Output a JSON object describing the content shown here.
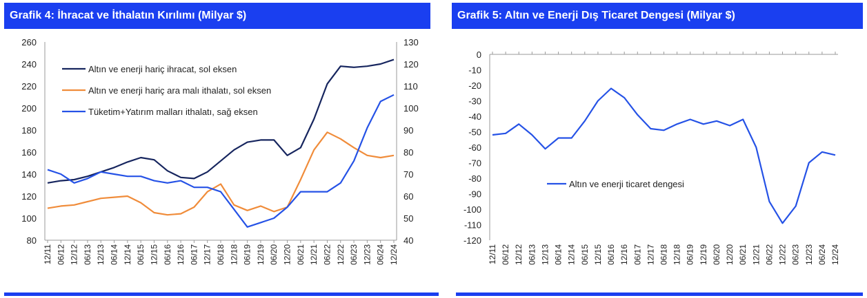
{
  "charts": [
    {
      "title": "Grafik 4: İhracat ve İthalatın Kırılımı (Milyar $)"
    },
    {
      "title": "Grafik 5: Altın ve Enerji Dış Ticaret Dengesi (Milyar $)"
    }
  ],
  "chart_data": [
    {
      "type": "line",
      "title": "Grafik 4: İhracat ve İthalatın Kırılımı (Milyar $)",
      "x_labels": [
        "12/11",
        "06/12",
        "12/12",
        "06/13",
        "12/13",
        "06/14",
        "12/14",
        "06/15",
        "12/15",
        "06/16",
        "12/16",
        "06/17",
        "12/17",
        "06/18",
        "12/18",
        "06/19",
        "12/19",
        "06/20",
        "12/20",
        "06/21",
        "12/21",
        "06/22",
        "12/22",
        "06/23",
        "12/23",
        "06/24",
        "12/24"
      ],
      "ylim_left": [
        80,
        260
      ],
      "yticks_left": [
        80,
        100,
        120,
        140,
        160,
        180,
        200,
        220,
        240,
        260
      ],
      "ylim_right": [
        40,
        130
      ],
      "yticks_right": [
        40,
        50,
        60,
        70,
        80,
        90,
        100,
        110,
        120,
        130
      ],
      "grid": false,
      "legend_position": "top-left",
      "series": [
        {
          "name": "Altın ve enerji hariç ihracat, sol eksen",
          "axis": "left",
          "color": "#16255e",
          "values": [
            132,
            134,
            135,
            138,
            142,
            146,
            151,
            155,
            153,
            143,
            137,
            136,
            142,
            152,
            162,
            169,
            171,
            171,
            157,
            164,
            190,
            222,
            238,
            237,
            238,
            240,
            244
          ]
        },
        {
          "name": "Altın ve enerji hariç ara malı ithalatı, sol eksen",
          "axis": "left",
          "color": "#f08c3a",
          "values": [
            109,
            111,
            112,
            115,
            118,
            119,
            120,
            114,
            105,
            103,
            104,
            110,
            124,
            131,
            112,
            107,
            111,
            106,
            110,
            135,
            162,
            178,
            172,
            164,
            157,
            155,
            157
          ]
        },
        {
          "name": "Tüketim+Yatırım malları ithalatı, sağ eksen",
          "axis": "right",
          "color": "#2552e6",
          "values": [
            72,
            70,
            66,
            68,
            71,
            70,
            69,
            69,
            67,
            66,
            67,
            64,
            64,
            62,
            54,
            46,
            48,
            50,
            55,
            62,
            62,
            62,
            66,
            76,
            91,
            103,
            106
          ]
        }
      ]
    },
    {
      "type": "line",
      "title": "Grafik 5: Altın ve Enerji Dış Ticaret Dengesi (Milyar $)",
      "x_labels": [
        "12/11",
        "06/12",
        "12/12",
        "06/13",
        "12/13",
        "06/14",
        "12/14",
        "06/15",
        "12/15",
        "06/16",
        "12/16",
        "06/17",
        "12/17",
        "06/18",
        "12/18",
        "06/19",
        "12/19",
        "06/20",
        "12/20",
        "06/21",
        "12/21",
        "06/22",
        "12/22",
        "06/23",
        "12/23",
        "06/24",
        "12/24"
      ],
      "ylim": [
        -120,
        0
      ],
      "yticks": [
        0,
        -10,
        -20,
        -30,
        -40,
        -50,
        -60,
        -70,
        -80,
        -90,
        -100,
        -110,
        -120
      ],
      "grid": false,
      "legend_position": "center-left",
      "series": [
        {
          "name": "Altın ve enerji ticaret dengesi",
          "color": "#2552e6",
          "values": [
            -52,
            -51,
            -45,
            -52,
            -61,
            -54,
            -54,
            -43,
            -30,
            -22,
            -28,
            -39,
            -48,
            -49,
            -45,
            -42,
            -45,
            -43,
            -46,
            -42,
            -60,
            -95,
            -109,
            -98,
            -70,
            -63,
            -65
          ]
        }
      ]
    }
  ]
}
